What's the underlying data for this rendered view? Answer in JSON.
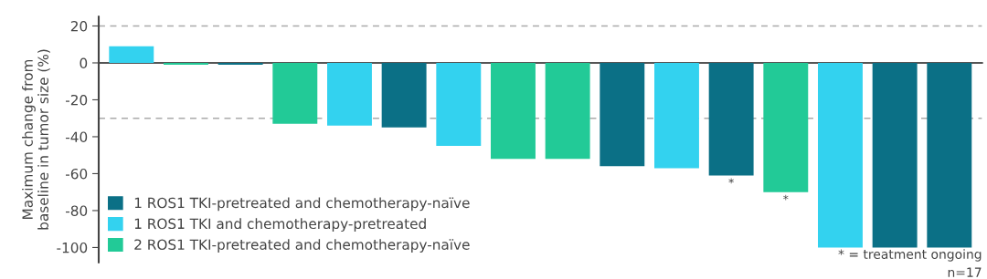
{
  "chart_data": {
    "type": "bar",
    "ylabel": "Maximum change from\nbaseline in tumor size (%)",
    "categories": [
      null,
      null,
      null,
      null,
      null,
      null,
      null,
      null,
      null,
      null,
      null,
      null,
      null,
      null,
      null,
      null
    ],
    "stacked": true,
    "series": [
      {
        "name": "1 ROS1 TKI-pretreated and chemotherapy-naïve",
        "color": "#0b7086",
        "values": [
          null,
          null,
          -1,
          null,
          null,
          -35,
          null,
          null,
          null,
          -56,
          null,
          -61,
          null,
          null,
          -100,
          -100
        ],
        "value_labels": [
          null,
          null,
          null,
          null,
          null,
          null,
          null,
          null,
          null,
          null,
          null,
          "*",
          null,
          null,
          null,
          null
        ]
      },
      {
        "name": "1 ROS1 TKI and chemotherapy-pretreated",
        "color": "#33d2ef",
        "values": [
          9,
          null,
          null,
          null,
          -34,
          null,
          -45,
          null,
          null,
          null,
          -57,
          null,
          null,
          -100,
          null,
          null
        ]
      },
      {
        "name": "2 ROS1 TKI-pretreated and chemotherapy-naïve",
        "color": "#22ca97",
        "values": [
          null,
          -1,
          null,
          -33,
          null,
          null,
          null,
          -52,
          -52,
          null,
          null,
          null,
          -70,
          null,
          null,
          null
        ],
        "value_labels": [
          null,
          null,
          null,
          null,
          null,
          null,
          null,
          null,
          null,
          null,
          null,
          null,
          "*",
          null,
          null,
          null
        ]
      }
    ],
    "ylim": [
      -108,
      25
    ],
    "yticks": [
      -100,
      -80,
      -60,
      -40,
      -20,
      0,
      20
    ],
    "ref_lines": [
      {
        "axis": "y",
        "value": 20,
        "color": "#aaaaaa",
        "line_style": "dashed"
      },
      {
        "axis": "y",
        "value": -30,
        "color": "#aaaaaa",
        "line_style": "dashed"
      }
    ],
    "legend": "bottom left",
    "grid": false,
    "annotations": [
      "* = treatment ongoing",
      "n=17"
    ]
  }
}
